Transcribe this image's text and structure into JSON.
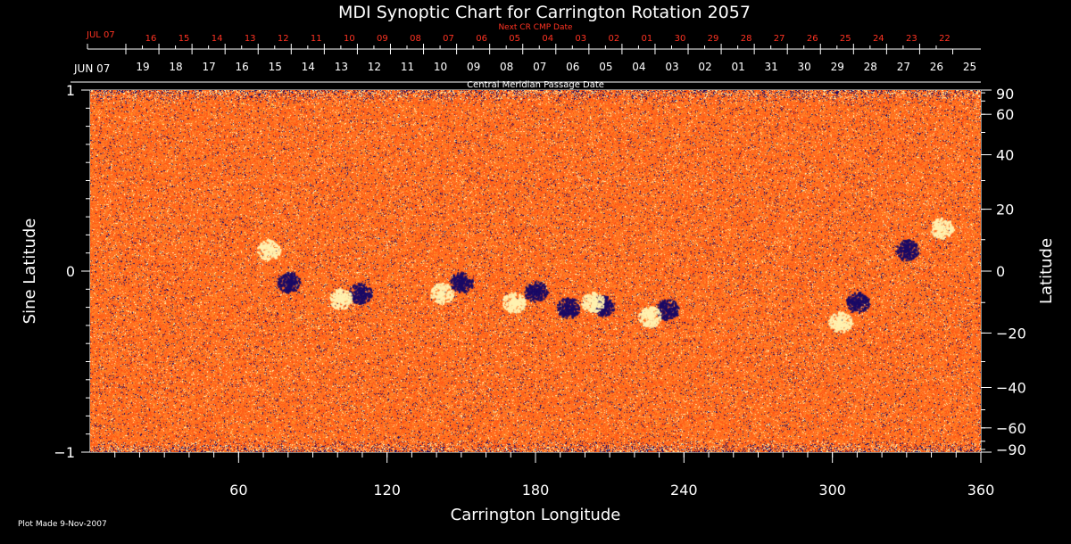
{
  "chart_data": {
    "type": "heatmap",
    "title": "MDI Synoptic Chart for Carrington Rotation 2057",
    "xlabel": "Carrington Longitude",
    "ylabel_left": "Sine Latitude",
    "ylabel_right": "Latitude",
    "xlim": [
      0,
      360
    ],
    "ylim": [
      -1,
      1
    ],
    "x_major_ticks": [
      60,
      120,
      180,
      240,
      300,
      360
    ],
    "x_minor_step": 10,
    "y_left_ticks": [
      {
        "value": 1,
        "label": "1"
      },
      {
        "value": 0,
        "label": "0"
      },
      {
        "value": -1,
        "label": "−1"
      }
    ],
    "y_left_minor_step": 0.1,
    "y_right_ticks": [
      90,
      60,
      40,
      20,
      0,
      -20,
      -40,
      -60,
      -90
    ],
    "y_right_labels": [
      "90",
      "60",
      "40",
      "20",
      "0",
      "−20",
      "−40",
      "−60",
      "−90"
    ],
    "cmp_axis_label": "Central Meridian Passage Date",
    "cmp_first_label": "JUN 07",
    "cmp_dates": [
      "19",
      "18",
      "17",
      "16",
      "15",
      "14",
      "13",
      "12",
      "11",
      "10",
      "09",
      "08",
      "07",
      "06",
      "05",
      "04",
      "03",
      "02",
      "01",
      "31",
      "30",
      "29",
      "28",
      "27",
      "26",
      "25"
    ],
    "next_cr_axis_label": "Next CR CMP Date",
    "next_cr_first_label": "JUL 07",
    "next_cr_dates": [
      "16",
      "15",
      "14",
      "13",
      "12",
      "11",
      "10",
      "09",
      "08",
      "07",
      "06",
      "05",
      "04",
      "03",
      "02",
      "01",
      "30",
      "29",
      "28",
      "27",
      "26",
      "25",
      "24",
      "23",
      "22"
    ],
    "crosshair": {
      "longitude": 180,
      "sine_latitude": 0
    },
    "colors": {
      "background": "#000000",
      "field_base": "#ff6a1e",
      "positive_polarity": "#fff2b0",
      "negative_polarity": "#1a0a66",
      "next_cr_text": "#ff3322",
      "axis": "#ffffff"
    },
    "active_regions": [
      {
        "longitude": 80,
        "sine_latitude": -0.06,
        "polarity": "negative"
      },
      {
        "longitude": 72,
        "sine_latitude": 0.12,
        "polarity": "positive"
      },
      {
        "longitude": 109,
        "sine_latitude": -0.12,
        "polarity": "negative"
      },
      {
        "longitude": 101,
        "sine_latitude": -0.15,
        "polarity": "positive"
      },
      {
        "longitude": 150,
        "sine_latitude": -0.06,
        "polarity": "negative"
      },
      {
        "longitude": 142,
        "sine_latitude": -0.12,
        "polarity": "positive"
      },
      {
        "longitude": 180,
        "sine_latitude": -0.11,
        "polarity": "negative"
      },
      {
        "longitude": 171,
        "sine_latitude": -0.17,
        "polarity": "positive"
      },
      {
        "longitude": 193,
        "sine_latitude": -0.2,
        "polarity": "negative"
      },
      {
        "longitude": 207,
        "sine_latitude": -0.19,
        "polarity": "negative"
      },
      {
        "longitude": 203,
        "sine_latitude": -0.17,
        "polarity": "positive"
      },
      {
        "longitude": 233,
        "sine_latitude": -0.21,
        "polarity": "negative"
      },
      {
        "longitude": 226,
        "sine_latitude": -0.25,
        "polarity": "positive"
      },
      {
        "longitude": 310,
        "sine_latitude": -0.17,
        "polarity": "negative"
      },
      {
        "longitude": 303,
        "sine_latitude": -0.28,
        "polarity": "positive"
      },
      {
        "longitude": 330,
        "sine_latitude": 0.12,
        "polarity": "negative"
      },
      {
        "longitude": 344,
        "sine_latitude": 0.24,
        "polarity": "positive"
      }
    ]
  },
  "footer": {
    "plot_made": "Plot Made  9-Nov-2007"
  }
}
